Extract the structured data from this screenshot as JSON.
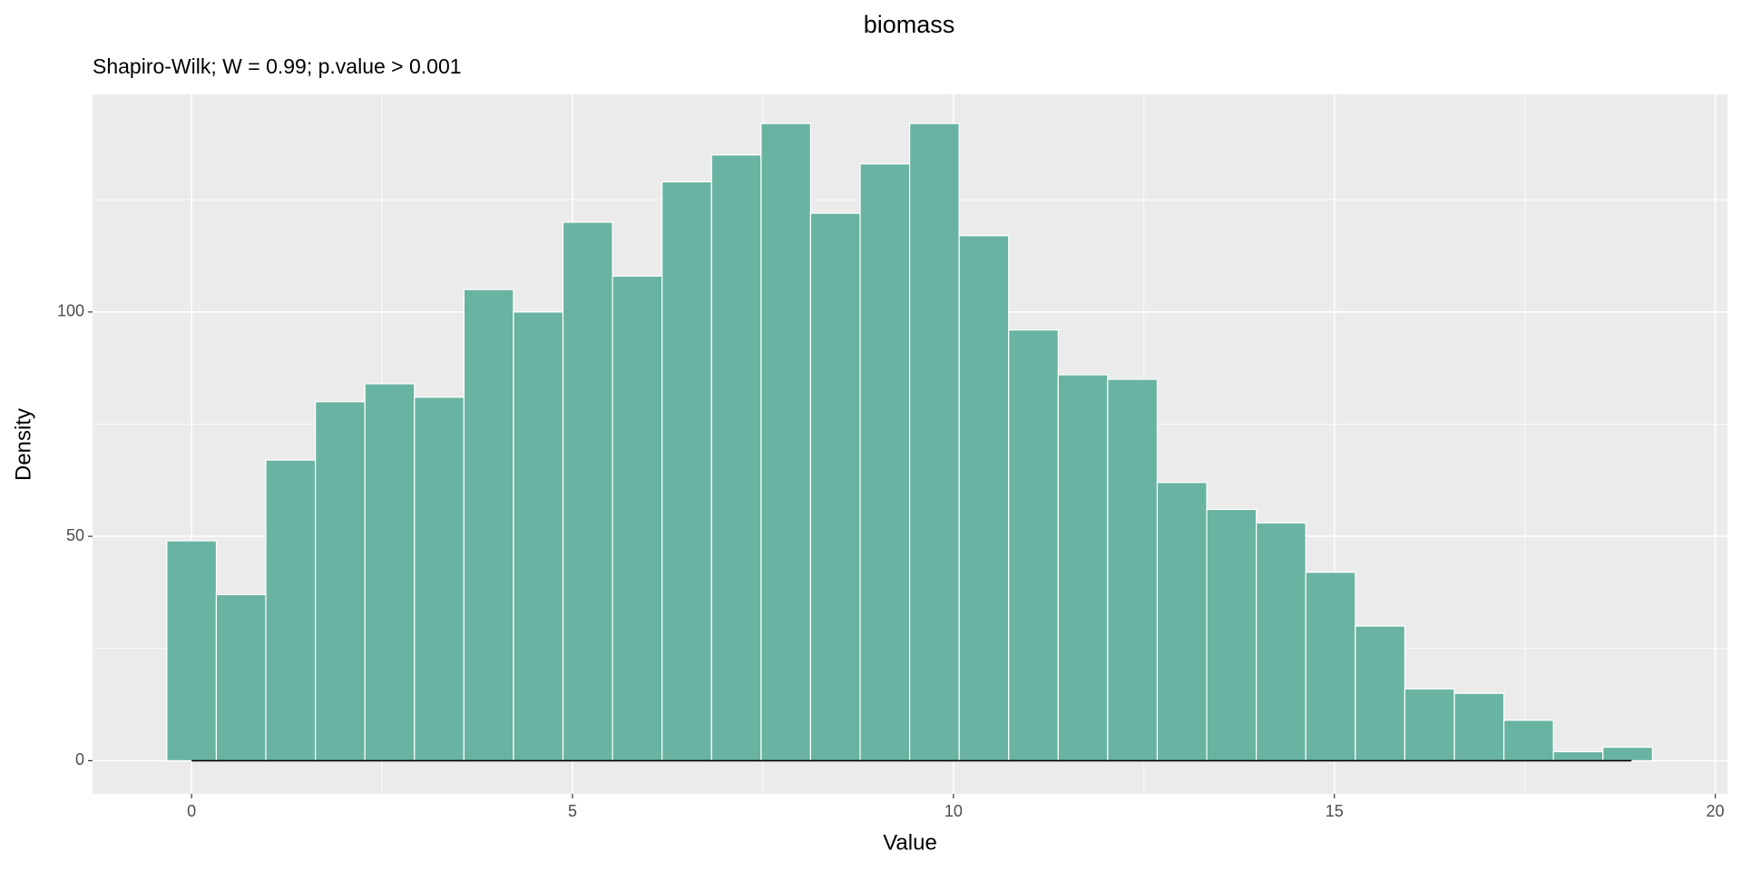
{
  "chart_data": {
    "type": "histogram",
    "title": "biomass",
    "subtitle": "Shapiro-Wilk; W = 0.99; p.value > 0.001",
    "x_label": "Value",
    "y_label": "Density",
    "bins": [
      -0.325,
      0.325,
      0.975,
      1.625,
      2.275,
      2.925,
      3.575,
      4.225,
      4.875,
      5.525,
      6.175,
      6.825,
      7.475,
      8.125,
      8.775,
      9.425,
      10.075,
      10.725,
      11.375,
      12.025,
      12.675,
      13.325,
      13.975,
      14.625,
      15.275,
      15.925,
      16.575,
      17.225,
      17.875,
      18.525,
      19.175
    ],
    "values": [
      49,
      37,
      67,
      80,
      84,
      81,
      105,
      100,
      120,
      108,
      129,
      135,
      142,
      122,
      133,
      142,
      117,
      96,
      86,
      85,
      62,
      56,
      53,
      42,
      30,
      16,
      15,
      9,
      2,
      3
    ],
    "color": "#69b3a2",
    "line": {
      "x": [
        0,
        18.9
      ],
      "values": [
        0,
        0
      ],
      "color": "#000000"
    },
    "xlim": [
      -1.3,
      20.16
    ],
    "xticks": [
      0,
      5,
      10,
      15,
      20
    ],
    "minor_xticks": [
      2.5,
      7.5,
      12.5,
      17.5
    ],
    "ylim": [
      -7.4,
      148.5
    ],
    "yticks": [
      0,
      50,
      100
    ],
    "minor_yticks": [
      25,
      75,
      125
    ],
    "grid": true
  }
}
